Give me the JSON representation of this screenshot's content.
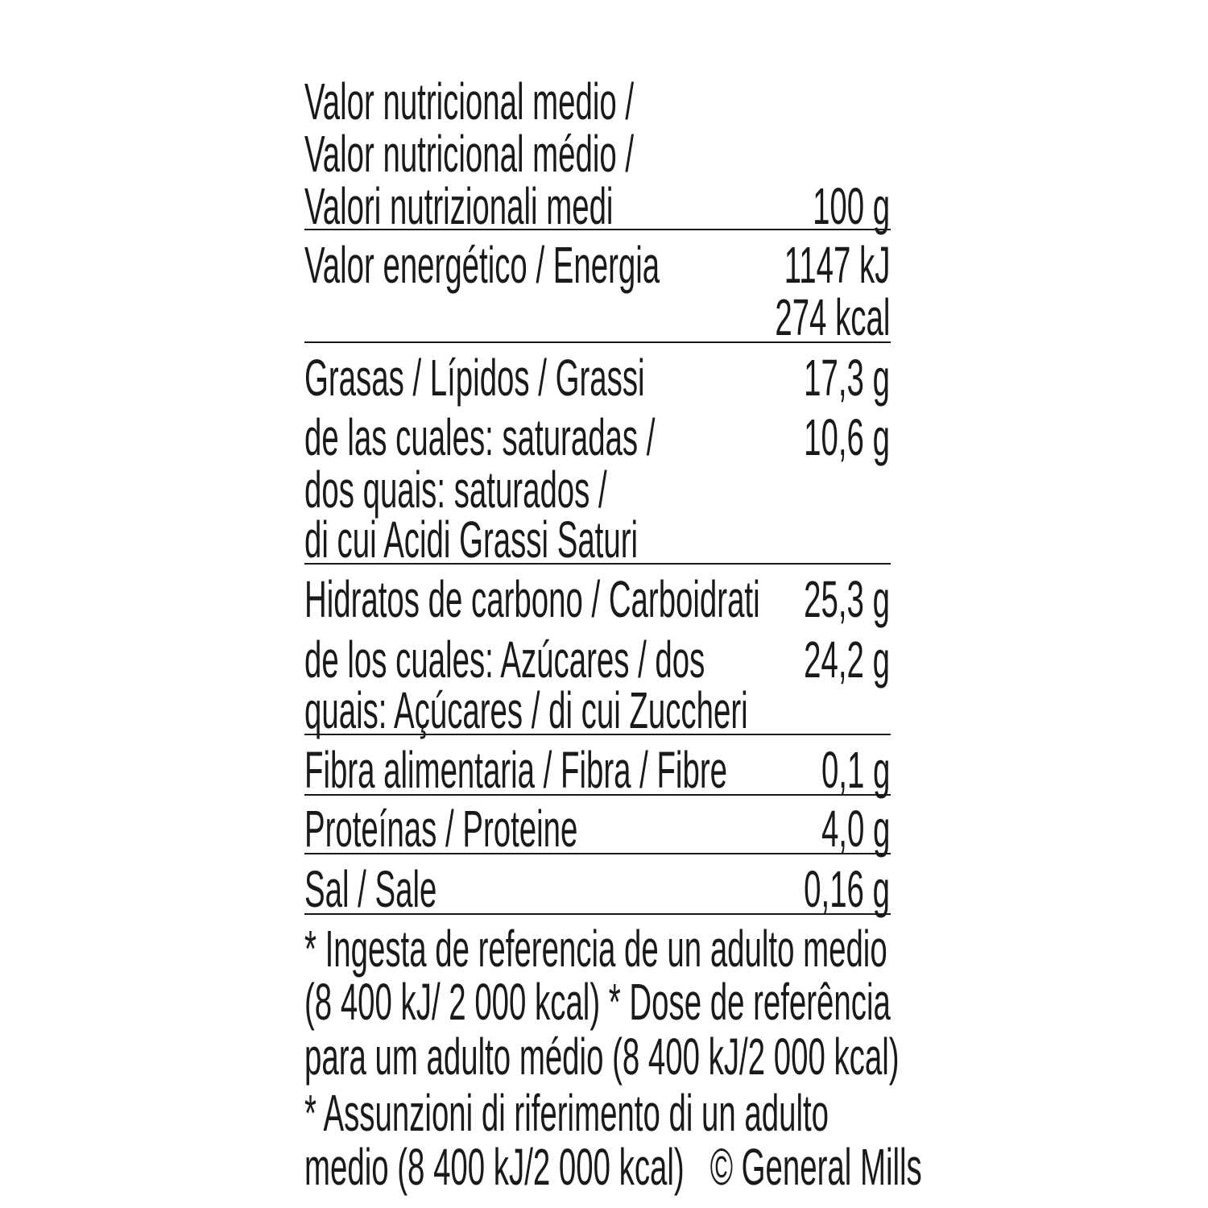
{
  "header": {
    "lines": [
      "Valor nutricional medio /",
      "Valor nutricional médio /",
      "Valori nutrizionali medi"
    ],
    "per": "100 g"
  },
  "rows": {
    "energy": {
      "label": "Valor energético / Energia",
      "values": [
        "1147 kJ",
        "274 kcal"
      ]
    },
    "fat": {
      "label": "Grasas / Lípidos / Grassi",
      "value": "17,3 g"
    },
    "saturates": {
      "lines": [
        "de las cuales: saturadas /",
        "dos quais: saturados /",
        "di cui Acidi Grassi Saturi"
      ],
      "value": "10,6 g"
    },
    "carbs": {
      "label": "Hidratos de carbono / Carboidrati",
      "value": "25,3 g"
    },
    "sugars": {
      "lines": [
        "de los cuales: Azúcares / dos",
        "quais: Açúcares / di cui Zuccheri"
      ],
      "value": "24,2 g"
    },
    "fibre": {
      "label": "Fibra alimentaria / Fibra / Fibre",
      "value": "0,1 g"
    },
    "protein": {
      "label": "Proteínas / Proteine",
      "value": "4,0 g"
    },
    "salt": {
      "label": "Sal / Sale",
      "value": "0,16 g"
    }
  },
  "footnote": {
    "lines": [
      "* Ingesta de referencia de un adulto medio",
      "(8 400 kJ/ 2 000 kcal) * Dose de referência",
      "para um adulto médio (8 400 kJ/2 000 kcal)",
      "* Assunzioni di riferimento di un adulto",
      "medio (8 400 kJ/2 000 kcal)   © General Mills"
    ]
  }
}
